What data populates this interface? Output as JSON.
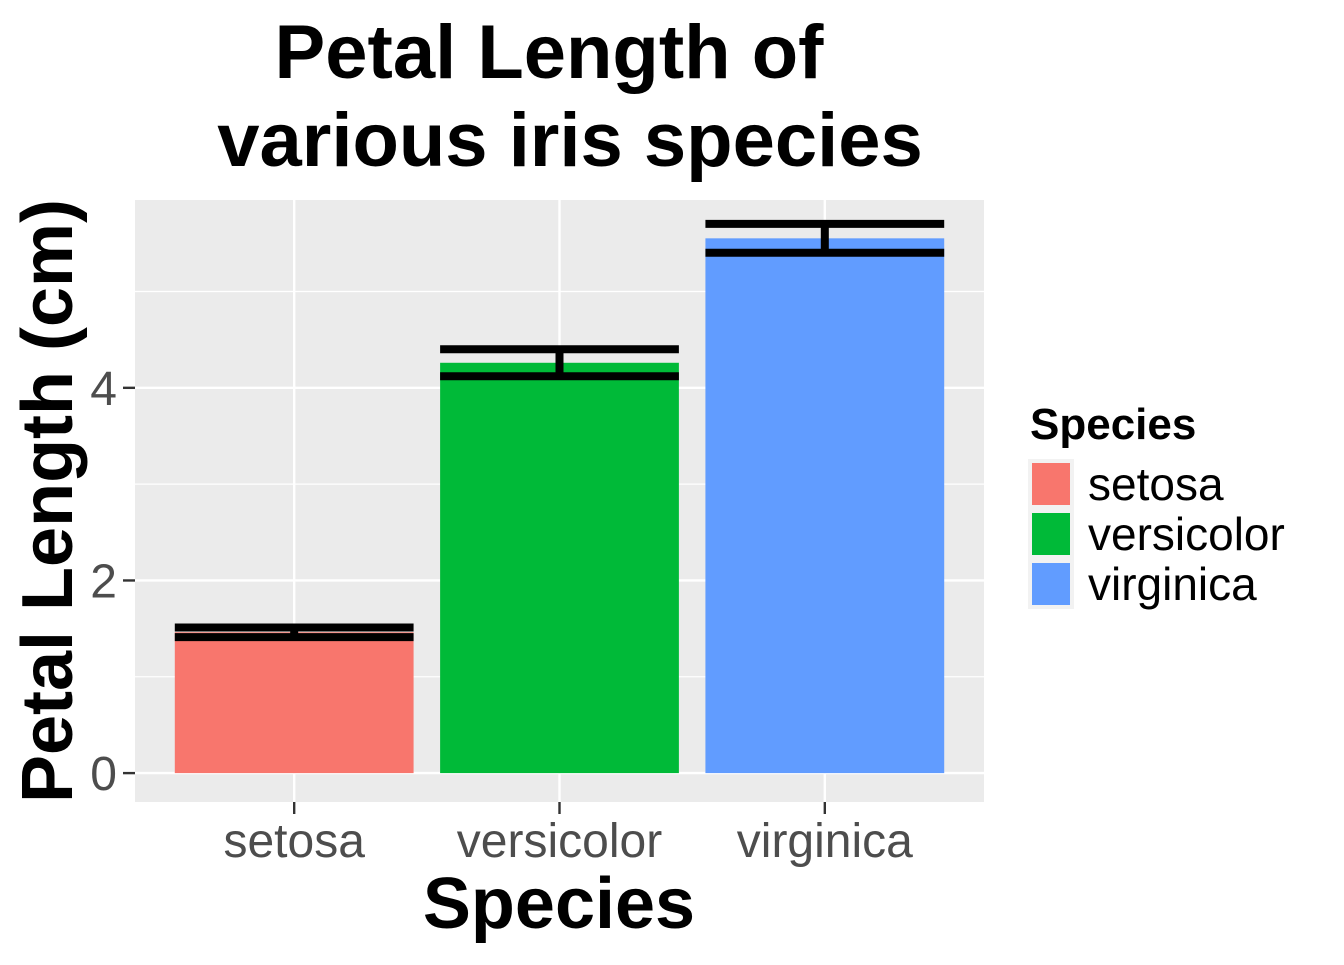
{
  "chart_data": {
    "type": "bar",
    "title_lines": [
      "Petal Length of",
      "various iris species"
    ],
    "xlabel": "Species",
    "ylabel": "Petal Length (cm)",
    "categories": [
      "setosa",
      "versicolor",
      "virginica"
    ],
    "values": [
      1.462,
      4.26,
      5.552
    ],
    "error_bars": {
      "low": [
        1.412,
        4.12,
        5.402
      ],
      "high": [
        1.512,
        4.4,
        5.702
      ]
    },
    "ylim": [
      -0.3,
      5.95
    ],
    "y_ticks": [
      0,
      2,
      4
    ],
    "y_tick_labels": [
      "0",
      "2",
      "4"
    ],
    "grid": true,
    "legend": {
      "title": "Species",
      "placement": "right",
      "entries": [
        "setosa",
        "versicolor",
        "virginica"
      ]
    },
    "colors": {
      "setosa": "#F8766D",
      "versicolor": "#00BA38",
      "virginica": "#619CFF",
      "panel_background": "#EBEBEB",
      "grid": "#FFFFFF",
      "error_bar": "#000000"
    }
  }
}
